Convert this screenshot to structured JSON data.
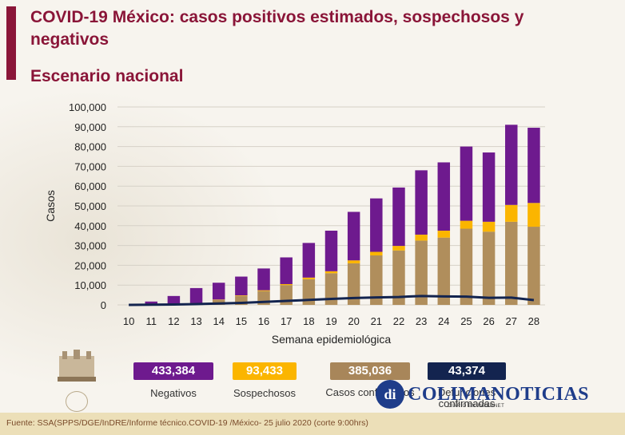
{
  "header": {
    "title_line1": "COVID-19 México: casos positivos estimados, sospechosos y",
    "title_line2": "negativos",
    "subtitle": "Escenario nacional"
  },
  "chart_data": {
    "type": "bar",
    "stacked": true,
    "xlabel": "Semana epidemiológica",
    "ylabel": "Casos",
    "ylim": [
      0,
      100000
    ],
    "yticks": [
      "0",
      "10,000",
      "20,000",
      "30,000",
      "40,000",
      "50,000",
      "60,000",
      "70,000",
      "80,000",
      "90,000",
      "100,000"
    ],
    "yticks_values": [
      0,
      10000,
      20000,
      30000,
      40000,
      50000,
      60000,
      70000,
      80000,
      90000,
      100000
    ],
    "categories": [
      "10",
      "11",
      "12",
      "13",
      "14",
      "15",
      "16",
      "17",
      "18",
      "19",
      "20",
      "21",
      "22",
      "23",
      "24",
      "25",
      "26",
      "27",
      "28"
    ],
    "grid": "horizontal",
    "series": [
      {
        "name": "Casos confirmados",
        "color": "#b08e5c",
        "values": [
          0,
          200,
          500,
          1000,
          2500,
          4500,
          7000,
          10000,
          13000,
          16000,
          21000,
          25000,
          27500,
          32500,
          34000,
          38500,
          37000,
          42000,
          39500
        ]
      },
      {
        "name": "Sospechosos",
        "color": "#fbb500",
        "values": [
          0,
          0,
          0,
          0,
          200,
          300,
          400,
          500,
          800,
          1000,
          1500,
          1800,
          2300,
          3000,
          3500,
          4000,
          5000,
          8500,
          12000
        ]
      },
      {
        "name": "Negativos",
        "color": "#6e1a8e",
        "values": [
          0,
          1500,
          4000,
          7500,
          8500,
          9500,
          11000,
          13500,
          17500,
          20500,
          24500,
          27000,
          29500,
          32500,
          34500,
          37500,
          35000,
          40500,
          38000
        ]
      },
      {
        "name": "Defunciones confirmadas",
        "color": "#13244f",
        "type": "line",
        "values": [
          0,
          100,
          200,
          400,
          700,
          1000,
          1500,
          2000,
          2500,
          3000,
          3500,
          3800,
          4000,
          4500,
          4300,
          4200,
          3600,
          3700,
          2400
        ]
      }
    ]
  },
  "legend": [
    {
      "value": "433,384",
      "label": "Negativos",
      "color": "#6e1a8e"
    },
    {
      "value": "93,433",
      "label": "Sospechosos",
      "color": "#fbb500"
    },
    {
      "value": "385,036",
      "label": "Casos confirmados",
      "color": "#a8865a"
    },
    {
      "value": "43,374",
      "label": "Defunciones confirmadas",
      "color": "#13244f"
    }
  ],
  "footer": {
    "source": "Fuente: SSA(SPPS/DGE/InDRE/Informe técnico.COVID-19 /México- 25 julio 2020 (corte 9:00hrs)"
  },
  "watermark": {
    "mark": "di",
    "text": "COLIMANOTICIAS",
    "sub": "DIARIO EN INTERNET"
  }
}
